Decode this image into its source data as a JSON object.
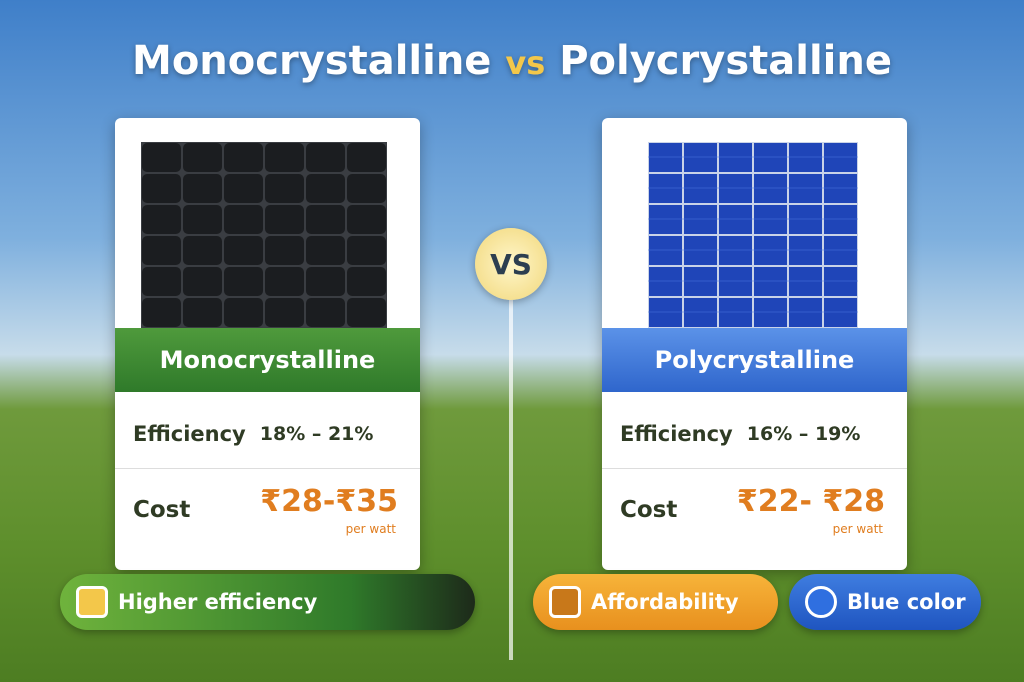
{
  "header": {
    "title_part1": "Monocrystalline",
    "title_vs": "vs",
    "title_part2": "Polycrystalline"
  },
  "vs_badge": "VS",
  "cards": [
    {
      "label": "Monocrystalline",
      "efficiency_label": "Efficiency",
      "efficiency_value": "18% – 21%",
      "cost_label": "Cost",
      "cost_value": "₹28-₹35",
      "cost_unit": "per watt"
    },
    {
      "label": "Polycrystalline",
      "efficiency_label": "Efficiency",
      "efficiency_value": "16% – 19%",
      "cost_label": "Cost",
      "cost_value": "₹22- ₹28",
      "cost_unit": "per watt"
    }
  ],
  "badges": [
    "Higher efficiency",
    "Affordability",
    "Blue color"
  ]
}
